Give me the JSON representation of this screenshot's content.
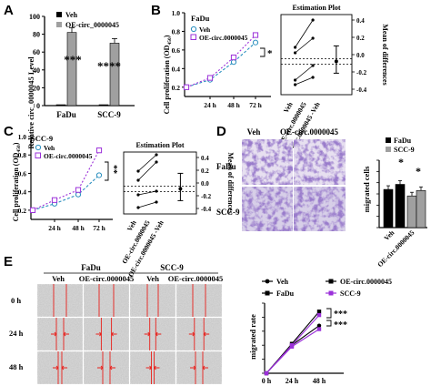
{
  "panel_letters": {
    "a": "A",
    "b": "B",
    "c": "C",
    "d": "D",
    "e": "E"
  },
  "A": {
    "ylabel": "Relative circ_0000045 Level",
    "legend": [
      "Veh",
      "OE-circ_0000045"
    ],
    "yticks": [
      "0",
      "20",
      "40",
      "60",
      "80",
      "100"
    ],
    "categories": [
      "FaDu",
      "SCC-9"
    ],
    "sig": [
      "***",
      "****"
    ]
  },
  "B": {
    "title": "FaDu",
    "legend": [
      "Veh",
      "OE-circ.0000045"
    ],
    "ylabel": "Cell proliferation (OD",
    "ylabel_sub": "450",
    "ylabel_close": ")",
    "yticks": [
      "0.2",
      "0.4",
      "0.6",
      "0.8",
      "1.0"
    ],
    "xticks": [
      "24 h",
      "48 h",
      "72 h"
    ],
    "sig": "*",
    "est_title": "Estimation Plot",
    "est_right_label": "Mean of differences",
    "est_yticks": [
      "-0.4",
      "-0.2",
      "0.0",
      "0.2",
      "0.4"
    ],
    "est_xlabels": [
      "Veh",
      "OE-circ.0000045",
      "OE-circ.0000045\n-Veh"
    ]
  },
  "C": {
    "title": "SCC-9",
    "legend": [
      "Veh",
      "OE-circ.0000045"
    ],
    "ylabel": "Cell proliferation (OD",
    "ylabel_sub": "450",
    "ylabel_close": ")",
    "yticks": [
      "0.2",
      "0.4",
      "0.6",
      "0.8",
      "1.0"
    ],
    "xticks": [
      "24 h",
      "48 h",
      "72 h"
    ],
    "sig": "**",
    "est_title": "Estimation Plot",
    "est_right_label": "Mean of differences",
    "est_yticks": [
      "-0.4",
      "-0.2",
      "0.0",
      "0.2",
      "0.4"
    ],
    "est_xlabels": [
      "Veh",
      "OE-circ.0000045",
      "OE-circ.0000045\n-Veh"
    ]
  },
  "D": {
    "col_labels": [
      "Veh",
      "OE-circ.0000045"
    ],
    "row_labels": [
      "FaDu",
      "SCC-9"
    ],
    "legend": [
      "FaDu",
      "SCC-9"
    ],
    "ylabel": "migrated cells",
    "yticks": [
      "0",
      "100",
      "200",
      "300",
      "400",
      "500",
      "600"
    ],
    "xlabels": [
      "Veh",
      "OE-circ.0000045"
    ],
    "sig": [
      "*",
      "*"
    ]
  },
  "E": {
    "cell_lines": [
      "FaDu",
      "SCC-9"
    ],
    "col_labels": [
      "Veh",
      "OE-circ.0000045",
      "Veh",
      "OE-circ.0000045"
    ],
    "row_labels": [
      "0 h",
      "24 h",
      "48 h"
    ],
    "legend": [
      "Veh",
      "OE-circ.0000045",
      "FaDu",
      "SCC-9"
    ],
    "ylabel": "migrated rate",
    "yticks": [
      "0.0",
      "0.2",
      "0.4",
      "0.6",
      "0.8",
      "1.0"
    ],
    "xticks": [
      "0 h",
      "24 h",
      "48 h"
    ],
    "sig": [
      "***",
      "***"
    ]
  },
  "colors": {
    "black": "#000000",
    "gray": "#a0a0a0",
    "purple": "#9b30d9",
    "blue": "#1f77b4",
    "red": "#e8201b",
    "dot_purple": "#b05ad6",
    "teal": "#2a8fbf"
  },
  "chart_data": [
    {
      "type": "bar",
      "id": "A",
      "categories": [
        "FaDu",
        "SCC-9"
      ],
      "series": [
        {
          "name": "Veh",
          "values": [
            1,
            1
          ]
        },
        {
          "name": "OE-circ_0000045",
          "values": [
            82,
            70
          ]
        }
      ],
      "ylim": [
        0,
        100
      ]
    },
    {
      "type": "line",
      "id": "B",
      "x": [
        "0 h",
        "24 h",
        "48 h",
        "72 h"
      ],
      "series": [
        {
          "name": "Veh",
          "values": [
            0.2,
            0.28,
            0.47,
            0.68
          ]
        },
        {
          "name": "OE-circ.0000045",
          "values": [
            0.2,
            0.3,
            0.52,
            0.76
          ]
        }
      ],
      "ylim": [
        0.1,
        1.0
      ]
    },
    {
      "type": "line",
      "id": "C",
      "x": [
        "0 h",
        "24 h",
        "48 h",
        "72 h"
      ],
      "series": [
        {
          "name": "Veh",
          "values": [
            0.2,
            0.27,
            0.37,
            0.58
          ]
        },
        {
          "name": "OE-circ.0000045",
          "values": [
            0.2,
            0.31,
            0.42,
            0.85
          ]
        }
      ],
      "ylim": [
        0.1,
        1.0
      ]
    },
    {
      "type": "bar",
      "id": "D",
      "categories": [
        "Veh",
        "OE-circ.0000045"
      ],
      "series": [
        {
          "name": "FaDu",
          "values": [
            340,
            385
          ]
        },
        {
          "name": "SCC-9",
          "values": [
            282,
            330
          ]
        }
      ],
      "ylim": [
        0,
        600
      ]
    },
    {
      "type": "line",
      "id": "E",
      "x": [
        "0 h",
        "24 h",
        "48 h"
      ],
      "series": [
        {
          "name": "FaDu Veh",
          "values": [
            0,
            0.4,
            0.68
          ]
        },
        {
          "name": "FaDu OE-circ.0000045",
          "values": [
            0,
            0.42,
            0.88
          ]
        },
        {
          "name": "SCC-9 Veh",
          "values": [
            0,
            0.38,
            0.63
          ]
        },
        {
          "name": "SCC-9 OE-circ.0000045",
          "values": [
            0,
            0.4,
            0.83
          ]
        }
      ],
      "ylim": [
        0,
        1.0
      ]
    }
  ]
}
